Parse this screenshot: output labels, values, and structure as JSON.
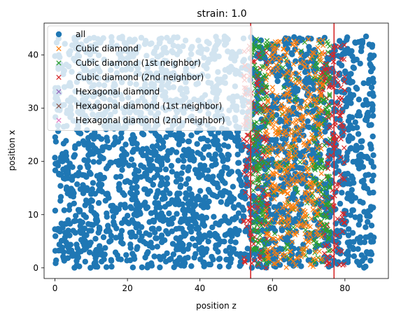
{
  "chart_data": {
    "type": "scatter",
    "title": "strain: 1.0",
    "xlabel": "position z",
    "ylabel": "position x",
    "xlim": [
      -3,
      92
    ],
    "ylim": [
      -2,
      46
    ],
    "xticks": [
      0,
      20,
      40,
      60,
      80
    ],
    "yticks": [
      0,
      10,
      20,
      30,
      40
    ],
    "legend_position": "top-left",
    "series": [
      {
        "name": "all",
        "marker": "circle",
        "color": "#1f77b4",
        "region": {
          "z": [
            0,
            88
          ],
          "x": [
            0,
            43.5
          ]
        }
      },
      {
        "name": "Cubic diamond",
        "marker": "x",
        "color": "#ff7f0e",
        "region": {
          "z": [
            58,
            74
          ],
          "x": [
            0,
            43
          ]
        }
      },
      {
        "name": "Cubic diamond (1st neighbor)",
        "marker": "x",
        "color": "#2ca02c",
        "region": {
          "z": [
            54,
            76
          ],
          "x": [
            0,
            43
          ]
        }
      },
      {
        "name": "Cubic diamond (2nd neighbor)",
        "marker": "x",
        "color": "#d62728",
        "region": {
          "z": [
            52,
            80
          ],
          "x": [
            0,
            42
          ]
        }
      },
      {
        "name": "Hexagonal diamond",
        "marker": "x",
        "color": "#9467bd"
      },
      {
        "name": "Hexagonal diamond (1st neighbor)",
        "marker": "x",
        "color": "#8c564b"
      },
      {
        "name": "Hexagonal diamond (2nd neighbor)",
        "marker": "x",
        "color": "#e377c2"
      }
    ],
    "vlines": [
      {
        "x": 54,
        "color": "#d62728"
      },
      {
        "x": 77,
        "color": "#d62728"
      }
    ]
  }
}
